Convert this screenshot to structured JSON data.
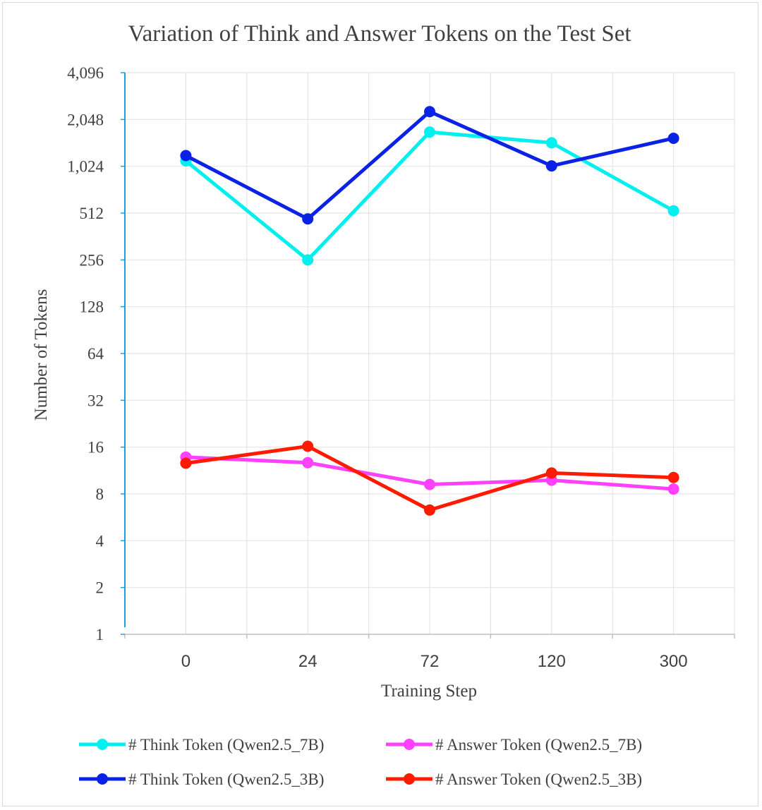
{
  "chart_data": {
    "type": "line",
    "title": "Variation of Think and Answer Tokens on the Test Set",
    "xlabel": "Training Step",
    "ylabel": "Number of Tokens",
    "categories": [
      "0",
      "24",
      "72",
      "120",
      "300"
    ],
    "yscale": "log2",
    "ylim": [
      1,
      4096
    ],
    "yticks": [
      1,
      2,
      4,
      8,
      16,
      32,
      64,
      128,
      256,
      512,
      1024,
      2048,
      4096
    ],
    "ytick_labels": [
      "1",
      "2",
      "4",
      "8",
      "16",
      "32",
      "64",
      "128",
      "256",
      "512",
      "1,024",
      "2,048",
      "4,096"
    ],
    "grid": true,
    "legend_position": "bottom",
    "series": [
      {
        "name": "# Think Token (Qwen2.5_7B)",
        "color": "#00f0f0",
        "values": [
          1110,
          256,
          1700,
          1450,
          530
        ]
      },
      {
        "name": "# Answer Token (Qwen2.5_7B)",
        "color": "#ff40ff",
        "values": [
          13.8,
          12.7,
          9.2,
          9.8,
          8.6
        ]
      },
      {
        "name": "# Think Token (Qwen2.5_3B)",
        "color": "#0a22e6",
        "values": [
          1200,
          470,
          2300,
          1030,
          1550
        ]
      },
      {
        "name": "# Answer Token (Qwen2.5_3B)",
        "color": "#ff1a00",
        "values": [
          12.6,
          16.2,
          6.3,
          10.9,
          10.2
        ]
      }
    ]
  }
}
